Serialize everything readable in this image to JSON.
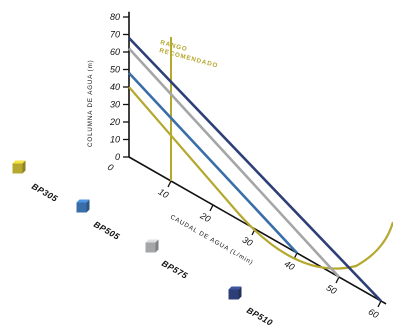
{
  "chart_data": {
    "type": "line",
    "ylabel": "COLUMNA DE AGUA (m)",
    "xlabel": "CAUDAL DE AGUA (L/min)",
    "y_ticks": [
      "0",
      "10",
      "20",
      "30",
      "40",
      "50",
      "60",
      "70",
      "80"
    ],
    "x_ticks": [
      "10",
      "20",
      "30",
      "40",
      "50",
      "60"
    ],
    "ylim": [
      0,
      80
    ],
    "xlim": [
      0,
      60
    ],
    "range_label_line1": "RANGO",
    "range_label_line2": "RECOMENDADO",
    "range_x": 10,
    "range_color": "#b5a82e",
    "series": [
      {
        "name": "BP305",
        "color": "#b5a82e",
        "x": [
          0,
          25,
          35
        ],
        "y": [
          40,
          5,
          0
        ]
      },
      {
        "name": "BP505",
        "color": "#3a6ea9",
        "x": [
          0,
          40
        ],
        "y": [
          48,
          0
        ]
      },
      {
        "name": "BP575",
        "color": "#a4a6a8",
        "x": [
          0,
          50
        ],
        "y": [
          62,
          0
        ]
      },
      {
        "name": "BP510",
        "color": "#2e3f78",
        "x": [
          0,
          60
        ],
        "y": [
          68,
          0
        ]
      }
    ],
    "legend_position": "left"
  }
}
